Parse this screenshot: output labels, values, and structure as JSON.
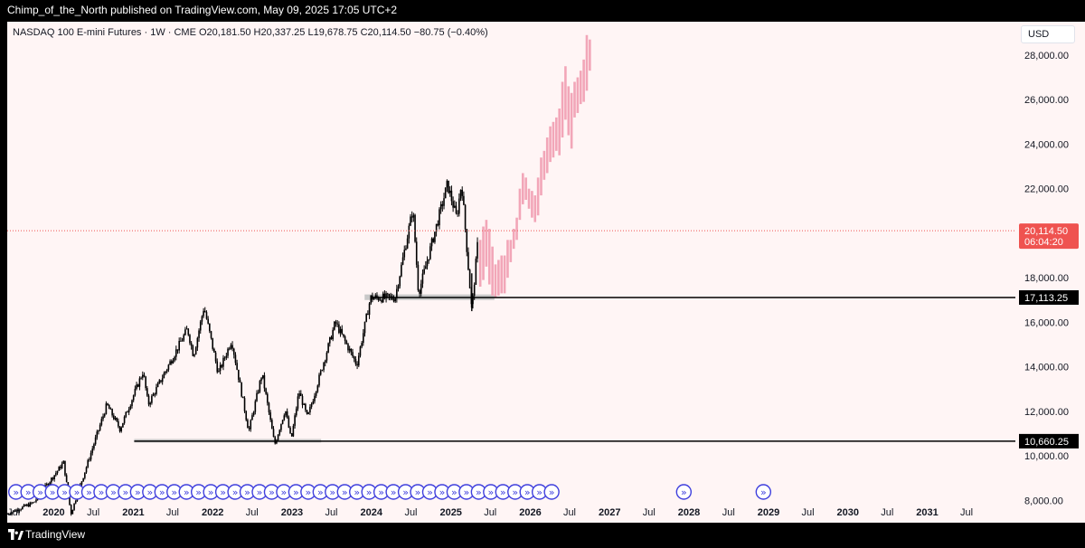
{
  "header": {
    "publish_text": "Chimp_of_the_North published on TradingView.com, May 09, 2025 17:05 UTC+2"
  },
  "symbol": {
    "info": "NASDAQ 100 E-mini Futures · 1W · CME  O20,181.50  H20,337.25  L19,678.75  C20,114.50  −80.75 (−0.40%)"
  },
  "currency_button": "USD",
  "footer": {
    "brand": "TradingView"
  },
  "colors": {
    "background": "#fff5f5",
    "candles": "#000000",
    "projection": "#f2a6b8",
    "zone": "#c8c8c8",
    "price_line": "#ef5350",
    "events": "#3f3fdd"
  },
  "chart_data": {
    "type": "candlestick",
    "timeframe": "1W",
    "y_axis": {
      "range": [
        7000,
        29500
      ],
      "scale": "linear",
      "ticks": [
        8000,
        10000,
        12000,
        14000,
        16000,
        18000,
        20000,
        22000,
        24000,
        26000,
        28000
      ],
      "tick_labels": [
        "8,000.00",
        "10,000.00",
        "12,000.00",
        "14,000.00",
        "16,000.00",
        "18,000.00",
        "",
        "22,000.00",
        "24,000.00",
        "26,000.00",
        "28,000.00"
      ]
    },
    "x_axis": {
      "range": [
        "2019-06-01",
        "2031-12-31"
      ],
      "labels": [
        {
          "label": "Jul",
          "date": "2019-07-01"
        },
        {
          "label": "2020",
          "date": "2020-01-01"
        },
        {
          "label": "Jul",
          "date": "2020-07-01"
        },
        {
          "label": "2021",
          "date": "2021-01-01"
        },
        {
          "label": "Jul",
          "date": "2021-07-01"
        },
        {
          "label": "2022",
          "date": "2022-01-01"
        },
        {
          "label": "Jul",
          "date": "2022-07-01"
        },
        {
          "label": "2023",
          "date": "2023-01-01"
        },
        {
          "label": "Jul",
          "date": "2023-07-01"
        },
        {
          "label": "2024",
          "date": "2024-01-01"
        },
        {
          "label": "Jul",
          "date": "2024-07-01"
        },
        {
          "label": "2025",
          "date": "2025-01-01"
        },
        {
          "label": "Jul",
          "date": "2025-07-01"
        },
        {
          "label": "2026",
          "date": "2026-01-01"
        },
        {
          "label": "Jul",
          "date": "2026-07-01"
        },
        {
          "label": "2027",
          "date": "2027-01-01"
        },
        {
          "label": "Jul",
          "date": "2027-07-01"
        },
        {
          "label": "2028",
          "date": "2028-01-01"
        },
        {
          "label": "Jul",
          "date": "2028-07-01"
        },
        {
          "label": "2029",
          "date": "2029-01-01"
        },
        {
          "label": "Jul",
          "date": "2029-07-01"
        },
        {
          "label": "2030",
          "date": "2030-01-01"
        },
        {
          "label": "Jul",
          "date": "2030-07-01"
        },
        {
          "label": "2031",
          "date": "2031-01-01"
        },
        {
          "label": "Jul",
          "date": "2031-07-01"
        }
      ]
    },
    "price_path": [
      [
        "2019-06-01",
        7400
      ],
      [
        "2019-10-01",
        7900
      ],
      [
        "2020-02-15",
        9700
      ],
      [
        "2020-03-20",
        7400
      ],
      [
        "2020-09-01",
        12300
      ],
      [
        "2020-11-01",
        11200
      ],
      [
        "2021-02-15",
        13800
      ],
      [
        "2021-03-10",
        12300
      ],
      [
        "2021-09-07",
        15700
      ],
      [
        "2021-10-05",
        14500
      ],
      [
        "2021-11-22",
        16700
      ],
      [
        "2022-01-27",
        13700
      ],
      [
        "2022-03-29",
        15200
      ],
      [
        "2022-06-16",
        11100
      ],
      [
        "2022-08-16",
        13700
      ],
      [
        "2022-10-13",
        10500
      ],
      [
        "2022-12-01",
        12100
      ],
      [
        "2022-12-28",
        10700
      ],
      [
        "2023-02-02",
        12900
      ],
      [
        "2023-03-13",
        11700
      ],
      [
        "2023-07-19",
        16000
      ],
      [
        "2023-10-26",
        14100
      ],
      [
        "2023-12-28",
        17100
      ],
      [
        "2024-04-19",
        17100
      ],
      [
        "2024-07-10",
        21100
      ],
      [
        "2024-08-05",
        17300
      ],
      [
        "2024-12-16",
        22200
      ],
      [
        "2025-01-27",
        20700
      ],
      [
        "2025-02-19",
        22300
      ],
      [
        "2025-04-07",
        16500
      ],
      [
        "2025-05-09",
        20114.5
      ]
    ],
    "projection": [
      [
        "2025-05-16",
        17600,
        19700
      ],
      [
        "2025-05-30",
        17900,
        20300
      ],
      [
        "2025-06-13",
        18500,
        20600
      ],
      [
        "2025-06-27",
        17700,
        20200
      ],
      [
        "2025-07-11",
        17200,
        19400
      ],
      [
        "2025-07-25",
        17100,
        18600
      ],
      [
        "2025-08-08",
        17200,
        18800
      ],
      [
        "2025-08-22",
        17300,
        19000
      ],
      [
        "2025-09-05",
        17300,
        19000
      ],
      [
        "2025-09-19",
        18000,
        19700
      ],
      [
        "2025-10-03",
        18700,
        19700
      ],
      [
        "2025-10-17",
        19300,
        20200
      ],
      [
        "2025-10-31",
        19700,
        20700
      ],
      [
        "2025-11-14",
        20600,
        22000
      ],
      [
        "2025-11-28",
        21300,
        22700
      ],
      [
        "2025-12-12",
        21500,
        22500
      ],
      [
        "2025-12-26",
        21100,
        22000
      ],
      [
        "2026-01-09",
        20700,
        21900
      ],
      [
        "2026-01-23",
        20500,
        21700
      ],
      [
        "2026-02-06",
        20800,
        22500
      ],
      [
        "2026-02-20",
        21700,
        23400
      ],
      [
        "2026-03-06",
        22400,
        23700
      ],
      [
        "2026-03-20",
        22700,
        24300
      ],
      [
        "2026-04-03",
        23200,
        24800
      ],
      [
        "2026-04-17",
        23400,
        25000
      ],
      [
        "2026-05-01",
        23700,
        25200
      ],
      [
        "2026-05-15",
        23500,
        25600
      ],
      [
        "2026-05-29",
        24300,
        26800
      ],
      [
        "2026-06-12",
        25100,
        27500
      ],
      [
        "2026-06-26",
        24400,
        26600
      ],
      [
        "2026-07-10",
        23800,
        26300
      ],
      [
        "2026-07-24",
        25200,
        26800
      ],
      [
        "2026-08-07",
        25400,
        27000
      ],
      [
        "2026-08-21",
        25800,
        27300
      ],
      [
        "2026-09-04",
        25900,
        27800
      ],
      [
        "2026-09-18",
        26400,
        28900
      ],
      [
        "2026-10-02",
        27300,
        28700
      ]
    ],
    "support_zones": [
      {
        "from": "2021-01-05",
        "to": "2023-05-15",
        "low": 10600,
        "high": 10760
      },
      {
        "from": "2023-12-01",
        "to": "2025-07-20",
        "low": 17000,
        "high": 17250
      }
    ],
    "horizontal_lines": [
      {
        "from": "2023-12-28",
        "value": 17113.25,
        "label": "17,113.25"
      },
      {
        "from": "2021-01-05",
        "value": 10660.25,
        "label": "10,660.25"
      }
    ],
    "last_price": {
      "value": 20114.5,
      "label": "20,114.50",
      "countdown": "06:04:20"
    },
    "event_markers": {
      "from": "2019-06-01",
      "to": "2026-04-03",
      "step_weeks": 8,
      "extra": [
        "2027-11-01",
        "2028-11-01"
      ],
      "glyph": "»"
    }
  }
}
